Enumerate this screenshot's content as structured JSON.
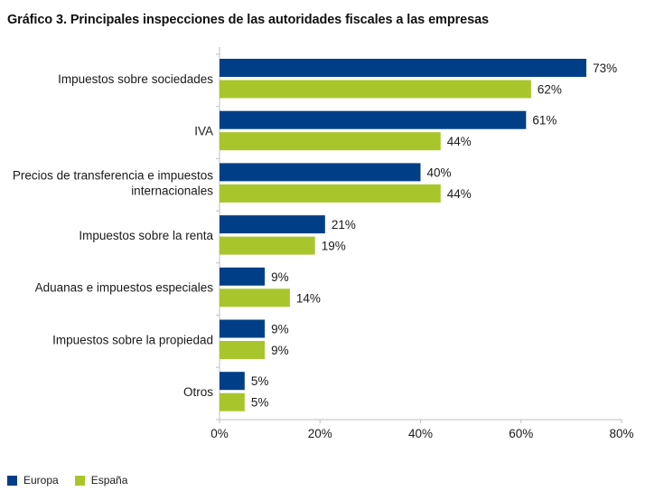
{
  "title": "Gráfico 3. Principales inspecciones de las autoridades fiscales a las empresas",
  "colors": {
    "europa": "#003f87",
    "espana": "#a8c62b"
  },
  "chart_data": {
    "type": "bar",
    "orientation": "horizontal",
    "categories": [
      [
        "Impuestos sobre sociedades"
      ],
      [
        "IVA"
      ],
      [
        "Precios de transferencia e impuestos",
        "internacionales"
      ],
      [
        "Impuestos sobre la renta"
      ],
      [
        "Aduanas e impuestos especiales"
      ],
      [
        "Impuestos sobre la propiedad"
      ],
      [
        "Otros"
      ]
    ],
    "series": [
      {
        "name": "Europa",
        "values": [
          73,
          61,
          40,
          21,
          9,
          9,
          5
        ],
        "labels": [
          "73%",
          "61%",
          "40%",
          "21%",
          "9%",
          "9%",
          "5%"
        ]
      },
      {
        "name": "España",
        "values": [
          62,
          44,
          44,
          19,
          14,
          9,
          5
        ],
        "labels": [
          "62%",
          "44%",
          "44%",
          "19%",
          "14%",
          "9%",
          "5%"
        ]
      }
    ],
    "xlim": [
      0,
      80
    ],
    "xticks": [
      0,
      20,
      40,
      60,
      80
    ],
    "xtick_labels": [
      "0%",
      "20%",
      "40%",
      "60%",
      "80%"
    ],
    "grid": false,
    "legend_position": "bottom-left"
  },
  "legend": [
    {
      "label": "Europa",
      "color": "#003f87"
    },
    {
      "label": "España",
      "color": "#a8c62b"
    }
  ]
}
